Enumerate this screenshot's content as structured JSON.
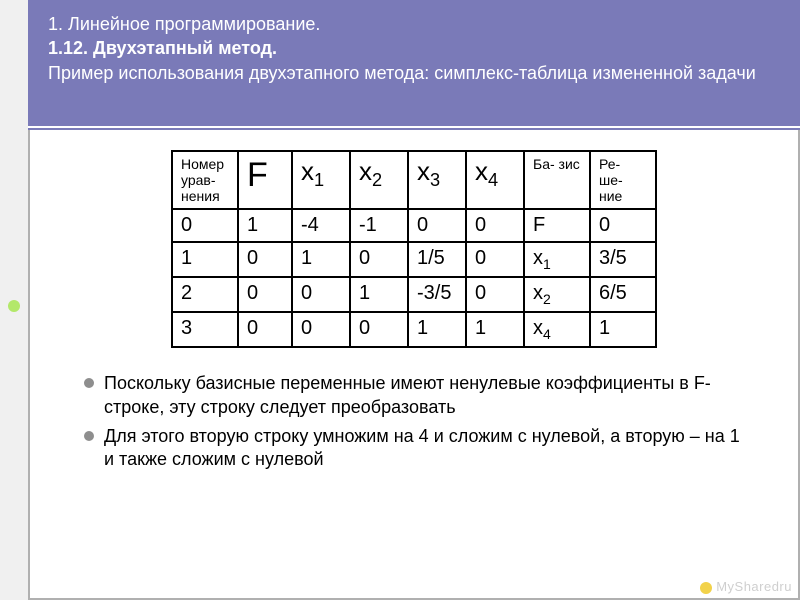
{
  "header": {
    "line1": "1. Линейное программирование.",
    "line2": "1.12. Двухэтапный метод.",
    "line3": "Пример использования двухэтапного метода: симплекс-таблица измененной задачи",
    "bg_color": "#7a7ab8",
    "text_color": "#ffffff"
  },
  "table": {
    "type": "table",
    "border_color": "#000000",
    "header_font_small": 14,
    "header_font_big": 26,
    "cell_font": 20,
    "columns": [
      {
        "key": "num",
        "label": "Номер урав- нения",
        "small": true
      },
      {
        "key": "F",
        "label": "F",
        "big": true
      },
      {
        "key": "x1",
        "label_base": "x",
        "label_sub": "1"
      },
      {
        "key": "x2",
        "label_base": "x",
        "label_sub": "2"
      },
      {
        "key": "x3",
        "label_base": "x",
        "label_sub": "3"
      },
      {
        "key": "x4",
        "label_base": "x",
        "label_sub": "4"
      },
      {
        "key": "basis",
        "label": "Ба- зис",
        "small": true
      },
      {
        "key": "sol",
        "label": "Ре- ше- ние",
        "small": true
      }
    ],
    "rows": [
      [
        "0",
        "1",
        "-4",
        "-1",
        "0",
        "0",
        {
          "text": "F"
        },
        "0"
      ],
      [
        "1",
        "0",
        "1",
        "0",
        "1/5",
        "0",
        {
          "base": "x",
          "sub": "1"
        },
        "3/5"
      ],
      [
        "2",
        "0",
        "0",
        "1",
        "-3/5",
        "0",
        {
          "base": "x",
          "sub": "2"
        },
        "6/5"
      ],
      [
        "3",
        "0",
        "0",
        "0",
        "1",
        "1",
        {
          "base": "x",
          "sub": "4"
        },
        "1"
      ]
    ]
  },
  "notes": [
    "Поскольку базисные переменные имеют ненулевые коэффициенты в F-строке, эту строку следует преобразовать",
    "Для этого вторую строку умножим на 4 и сложим с нулевой, а вторую – на 1 и также сложим с нулевой"
  ],
  "watermark": "MySharedru",
  "colors": {
    "sidebar_bg": "#f0f0f0",
    "sidebar_dot": "#b3e86a",
    "content_border": "#b0b0b0",
    "bullet": "#8e8e8e",
    "watermark_text": "#cfcfcf",
    "watermark_dot": "#f2d24a"
  }
}
